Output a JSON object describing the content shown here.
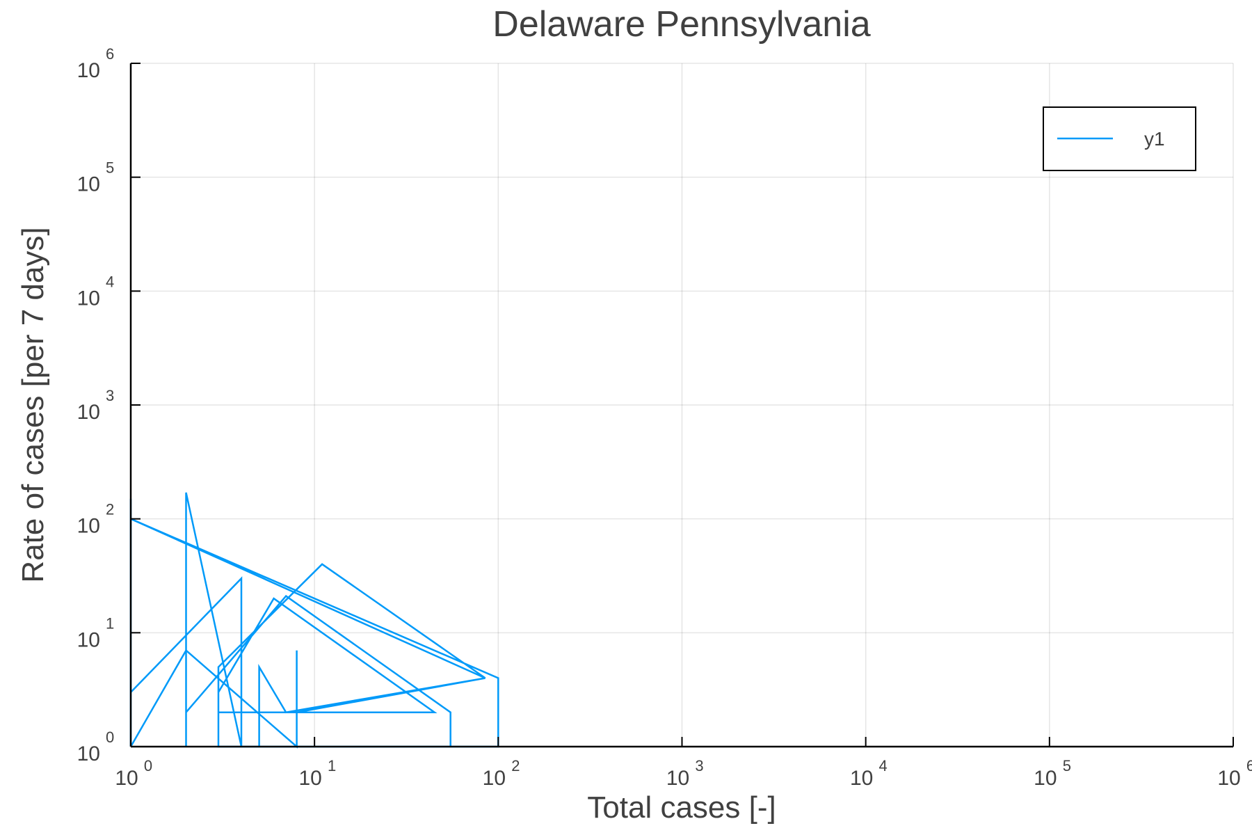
{
  "chart_data": {
    "type": "line",
    "title": "Delaware Pennsylvania",
    "xlabel": "Total cases [-]",
    "ylabel": "Rate of cases [per 7 days]",
    "xscale": "log",
    "yscale": "log",
    "xlim": [
      1,
      1000000
    ],
    "ylim": [
      1,
      1000000
    ],
    "grid": true,
    "legend_position": "top-right",
    "x_ticks": [
      {
        "base": "10",
        "exp": "0",
        "value": 1
      },
      {
        "base": "10",
        "exp": "1",
        "value": 10
      },
      {
        "base": "10",
        "exp": "2",
        "value": 100
      },
      {
        "base": "10",
        "exp": "3",
        "value": 1000
      },
      {
        "base": "10",
        "exp": "4",
        "value": 10000
      },
      {
        "base": "10",
        "exp": "5",
        "value": 100000
      },
      {
        "base": "10",
        "exp": "6",
        "value": 1000000
      }
    ],
    "y_ticks": [
      {
        "base": "10",
        "exp": "0",
        "value": 1
      },
      {
        "base": "10",
        "exp": "1",
        "value": 10
      },
      {
        "base": "10",
        "exp": "2",
        "value": 100
      },
      {
        "base": "10",
        "exp": "3",
        "value": 1000
      },
      {
        "base": "10",
        "exp": "4",
        "value": 10000
      },
      {
        "base": "10",
        "exp": "5",
        "value": 100000
      },
      {
        "base": "10",
        "exp": "6",
        "value": 1000000
      }
    ],
    "series": [
      {
        "name": "y1",
        "color": "#009AF9",
        "points": [
          [
            1,
            150
          ],
          [
            1,
            1
          ],
          [
            1,
            1
          ],
          [
            1,
            3
          ],
          [
            4,
            30
          ],
          [
            4,
            1
          ],
          [
            2,
            170
          ],
          [
            2,
            1
          ],
          [
            2,
            2
          ],
          [
            7,
            21
          ],
          [
            55,
            2
          ],
          [
            55,
            1
          ],
          [
            3,
            1
          ],
          [
            3,
            3
          ],
          [
            6,
            20
          ],
          [
            45,
            2
          ],
          [
            3,
            2
          ],
          [
            3,
            5
          ],
          [
            11,
            40
          ],
          [
            85,
            4
          ],
          [
            1,
            100
          ],
          [
            100,
            4
          ],
          [
            100,
            1
          ],
          [
            5,
            1
          ],
          [
            5,
            5
          ],
          [
            7,
            2
          ],
          [
            85,
            4
          ],
          [
            8,
            2
          ],
          [
            8,
            7
          ],
          [
            8,
            1
          ],
          [
            2,
            7
          ],
          [
            1,
            1
          ]
        ]
      }
    ]
  }
}
